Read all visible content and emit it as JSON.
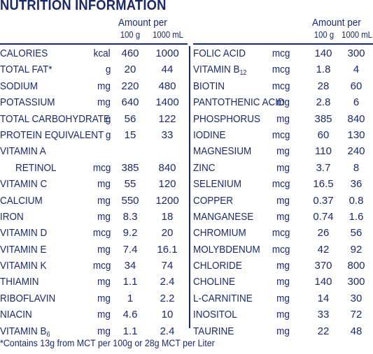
{
  "title": "NUTRITION INFORMATION",
  "header": {
    "amount_per": "Amount per",
    "per_100g": "100 g",
    "per_1000ml": "1000 mL"
  },
  "left_rows": [
    {
      "label": "CALORIES",
      "unit": "kcal",
      "v100": "460",
      "v1000": "1000"
    },
    {
      "label": "TOTAL FAT*",
      "unit": "g",
      "v100": "20",
      "v1000": "44"
    },
    {
      "label": "SODIUM",
      "unit": "mg",
      "v100": "220",
      "v1000": "480"
    },
    {
      "label": "POTASSIUM",
      "unit": "mg",
      "v100": "640",
      "v1000": "1400"
    },
    {
      "label": "TOTAL CARBOHYDRATE",
      "unit": "g",
      "v100": "56",
      "v1000": "122"
    },
    {
      "label": "PROTEIN EQUIVALENT",
      "unit": "g",
      "v100": "15",
      "v1000": "33"
    },
    {
      "label": "VITAMIN A",
      "unit": "",
      "v100": "",
      "v1000": ""
    },
    {
      "label": "RETINOL",
      "unit": "mcg",
      "v100": "385",
      "v1000": "840",
      "indent": true
    },
    {
      "label": "VITAMIN C",
      "unit": "mg",
      "v100": "55",
      "v1000": "120"
    },
    {
      "label": "CALCIUM",
      "unit": "mg",
      "v100": "550",
      "v1000": "1200"
    },
    {
      "label": "IRON",
      "unit": "mg",
      "v100": "8.3",
      "v1000": "18"
    },
    {
      "label": "VITAMIN D",
      "unit": "mcg",
      "v100": "9.2",
      "v1000": "20"
    },
    {
      "label": "VITAMIN E",
      "unit": "mg",
      "v100": "7.4",
      "v1000": "16.1"
    },
    {
      "label": "VITAMIN K",
      "unit": "mcg",
      "v100": "34",
      "v1000": "74"
    },
    {
      "label": "THIAMIN",
      "unit": "mg",
      "v100": "1.1",
      "v1000": "2.4"
    },
    {
      "label": "RIBOFLAVIN",
      "unit": "mg",
      "v100": "1",
      "v1000": "2.2"
    },
    {
      "label": "NIACIN",
      "unit": "mg",
      "v100": "4.6",
      "v1000": "10"
    },
    {
      "label": "VITAMIN B",
      "sub": "6",
      "unit": "mg",
      "v100": "1.1",
      "v1000": "2.4"
    }
  ],
  "right_rows": [
    {
      "label": "FOLIC ACID",
      "unit": "mcg",
      "v100": "140",
      "v1000": "300"
    },
    {
      "label": "VITAMIN B",
      "sub": "12",
      "unit": "mcg",
      "v100": "1.8",
      "v1000": "4"
    },
    {
      "label": "BIOTIN",
      "unit": "mcg",
      "v100": "28",
      "v1000": "60"
    },
    {
      "label": "PANTOTHENIC ACID",
      "unit": "mg",
      "v100": "2.8",
      "v1000": "6"
    },
    {
      "label": "PHOSPHORUS",
      "unit": "mg",
      "v100": "385",
      "v1000": "840"
    },
    {
      "label": "IODINE",
      "unit": "mcg",
      "v100": "60",
      "v1000": "130"
    },
    {
      "label": "MAGNESIUM",
      "unit": "mg",
      "v100": "110",
      "v1000": "240"
    },
    {
      "label": "ZINC",
      "unit": "mg",
      "v100": "3.7",
      "v1000": "8"
    },
    {
      "label": "SELENIUM",
      "unit": "mcg",
      "v100": "16.5",
      "v1000": "36"
    },
    {
      "label": "COPPER",
      "unit": "mg",
      "v100": "0.37",
      "v1000": "0.8"
    },
    {
      "label": "MANGANESE",
      "unit": "mg",
      "v100": "0.74",
      "v1000": "1.6"
    },
    {
      "label": "CHROMIUM",
      "unit": "mcg",
      "v100": "26",
      "v1000": "56"
    },
    {
      "label": "MOLYBDENUM",
      "unit": "mcg",
      "v100": "42",
      "v1000": "92"
    },
    {
      "label": "CHLORIDE",
      "unit": "mg",
      "v100": "370",
      "v1000": "800"
    },
    {
      "label": "CHOLINE",
      "unit": "mg",
      "v100": "140",
      "v1000": "300"
    },
    {
      "label": "L-CARNITINE",
      "unit": "mg",
      "v100": "14",
      "v1000": "30"
    },
    {
      "label": "INOSITOL",
      "unit": "mg",
      "v100": "33",
      "v1000": "72"
    },
    {
      "label": "TAURINE",
      "unit": "mg",
      "v100": "22",
      "v1000": "48"
    }
  ],
  "footnote": "*Contains 13g from MCT per 100g or 28g MCT per Liter",
  "colors": {
    "text": "#1b2a6b",
    "background": "#ffffff"
  }
}
